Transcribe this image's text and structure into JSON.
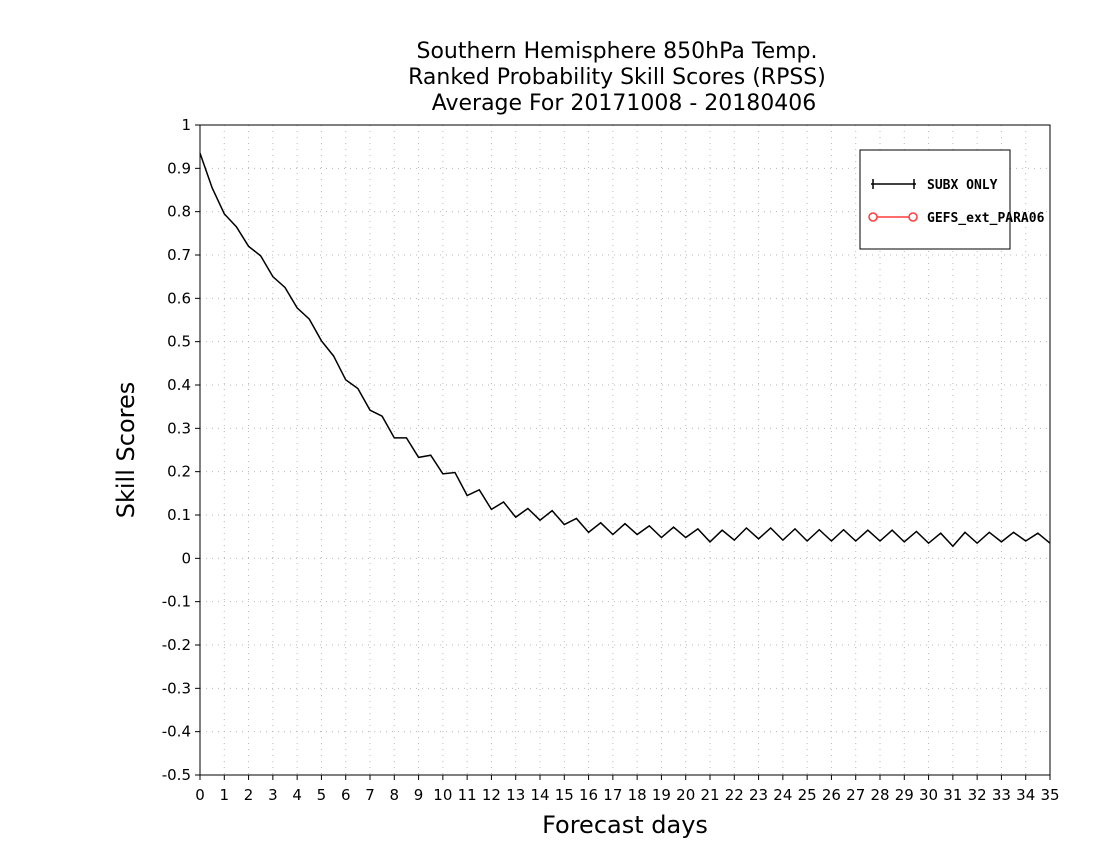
{
  "chart_data": {
    "type": "line",
    "title": [
      "Southern Hemisphere 850hPa Temp.",
      "Ranked Probability Skill Scores (RPSS)",
      "Average For 20171008 - 20180406"
    ],
    "xlabel": "Forecast days",
    "ylabel": "Skill Scores",
    "xlim": [
      0,
      35
    ],
    "ylim": [
      -0.5,
      1
    ],
    "x_ticks": [
      "0",
      "1",
      "2",
      "3",
      "4",
      "5",
      "6",
      "7",
      "8",
      "9",
      "10",
      "11",
      "12",
      "13",
      "14",
      "15",
      "16",
      "17",
      "18",
      "19",
      "20",
      "21",
      "22",
      "23",
      "24",
      "25",
      "26",
      "27",
      "28",
      "29",
      "30",
      "31",
      "32",
      "33",
      "34",
      "35"
    ],
    "y_ticks": [
      "1",
      "0.9",
      "0.8",
      "0.7",
      "0.6",
      "0.5",
      "0.4",
      "0.3",
      "0.2",
      "0.1",
      "0",
      "-0.1",
      "-0.2",
      "-0.3",
      "-0.4",
      "-0.5"
    ],
    "grid": true,
    "legend_position": "top-right",
    "series": [
      {
        "name": "SUBX ONLY",
        "color": "#000000",
        "marker": "plus",
        "x": [
          0,
          0.5,
          1,
          1.5,
          2,
          2.5,
          3,
          3.5,
          4,
          4.5,
          5,
          5.5,
          6,
          6.5,
          7,
          7.5,
          8,
          8.5,
          9,
          9.5,
          10,
          10.5,
          11,
          11.5,
          12,
          12.5,
          13,
          13.5,
          14,
          14.5,
          15,
          15.5,
          16,
          16.5,
          17,
          17.5,
          18,
          18.5,
          19,
          19.5,
          20,
          20.5,
          21,
          21.5,
          22,
          22.5,
          23,
          23.5,
          24,
          24.5,
          25,
          25.5,
          26,
          26.5,
          27,
          27.5,
          28,
          28.5,
          29,
          29.5,
          30,
          30.5,
          31,
          31.5,
          32,
          32.5,
          33,
          33.5,
          34,
          34.5,
          35
        ],
        "y": [
          0.935,
          0.855,
          0.795,
          0.765,
          0.72,
          0.698,
          0.65,
          0.625,
          0.578,
          0.552,
          0.502,
          0.467,
          0.412,
          0.392,
          0.342,
          0.328,
          0.278,
          0.278,
          0.233,
          0.238,
          0.195,
          0.198,
          0.145,
          0.158,
          0.113,
          0.13,
          0.095,
          0.115,
          0.088,
          0.11,
          0.078,
          0.092,
          0.06,
          0.082,
          0.055,
          0.08,
          0.055,
          0.075,
          0.048,
          0.072,
          0.048,
          0.068,
          0.038,
          0.065,
          0.042,
          0.07,
          0.045,
          0.07,
          0.042,
          0.068,
          0.04,
          0.066,
          0.04,
          0.066,
          0.04,
          0.065,
          0.04,
          0.065,
          0.038,
          0.062,
          0.035,
          0.058,
          0.028,
          0.06,
          0.035,
          0.06,
          0.038,
          0.06,
          0.04,
          0.058,
          0.035
        ]
      },
      {
        "name": "GEFS_ext_PARA06",
        "color": "#ff3b3b",
        "marker": "circle",
        "x": [],
        "y": []
      }
    ]
  }
}
